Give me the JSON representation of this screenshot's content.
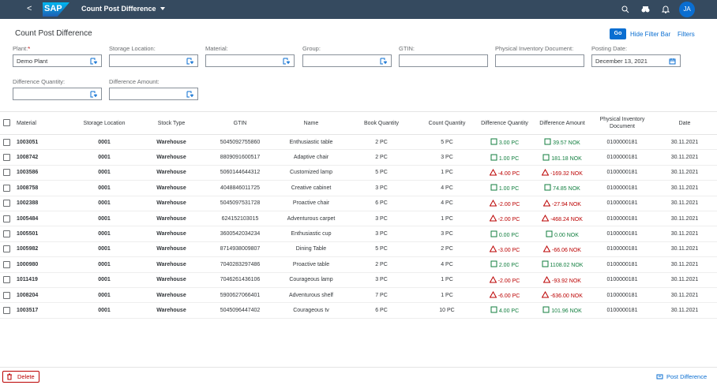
{
  "shell": {
    "back": "<",
    "logo": "SAP",
    "title": "Count Post Difference",
    "user": "JA"
  },
  "header": {
    "title": "Count Post Difference",
    "go": "Go",
    "hide_filter_bar": "Hide Filter Bar",
    "filters_link": "Filters"
  },
  "filters": [
    {
      "label": "Plant:",
      "required": "*",
      "value": "Demo Plant"
    },
    {
      "label": "Storage Location:"
    },
    {
      "label": "Material:"
    },
    {
      "label": "Group:"
    },
    {
      "label": "GTIN:"
    },
    {
      "label": "Physical Inventory Document:"
    },
    {
      "label": "Posting Date:",
      "value": "December 13, 2021"
    },
    {
      "label": "Difference Quantity:"
    },
    {
      "label": "Difference Amount:"
    }
  ],
  "table": {
    "columns": [
      "Material",
      "Storage Location",
      "Stock Type",
      "GTIN",
      "Name",
      "Book Quantity",
      "Count Quantity",
      "Difference Quantity",
      "Difference Amount",
      "Physical Inventory Document",
      "Date"
    ],
    "rows": [
      [
        "1003051",
        "0001",
        "Warehouse",
        "5045092755860",
        "Enthusiastic table",
        "2 PC",
        "5 PC",
        "3.00 PC",
        "39.57 NOK",
        "0100000181",
        "30.11.2021"
      ],
      [
        "1008742",
        "0001",
        "Warehouse",
        "8809091600517",
        "Adaptive chair",
        "2 PC",
        "3 PC",
        "1.00 PC",
        "181.18 NOK",
        "0100000181",
        "30.11.2021"
      ],
      [
        "1003586",
        "0001",
        "Warehouse",
        "5060144644312",
        "Customized lamp",
        "5 PC",
        "1 PC",
        "-4.00 PC",
        "-169.32 NOK",
        "0100000181",
        "30.11.2021"
      ],
      [
        "1008758",
        "0001",
        "Warehouse",
        "4048846011725",
        "Creative cabinet",
        "3 PC",
        "4 PC",
        "1.00 PC",
        "74.85 NOK",
        "0100000181",
        "30.11.2021"
      ],
      [
        "1002388",
        "0001",
        "Warehouse",
        "5045097531728",
        "Proactive chair",
        "6 PC",
        "4 PC",
        "-2.00 PC",
        "-27.94 NOK",
        "0100000181",
        "30.11.2021"
      ],
      [
        "1005484",
        "0001",
        "Warehouse",
        "624152103015",
        "Adventurous carpet",
        "3 PC",
        "1 PC",
        "-2.00 PC",
        "-468.24 NOK",
        "0100000181",
        "30.11.2021"
      ],
      [
        "1005501",
        "0001",
        "Warehouse",
        "3600542034234",
        "Enthusiastic cup",
        "3 PC",
        "3 PC",
        "0.00 PC",
        "0.00 NOK",
        "0100000181",
        "30.11.2021"
      ],
      [
        "1005982",
        "0001",
        "Warehouse",
        "8714938009807",
        "Dining Table",
        "5 PC",
        "2 PC",
        "-3.00 PC",
        "-66.06 NOK",
        "0100000181",
        "30.11.2021"
      ],
      [
        "1000980",
        "0001",
        "Warehouse",
        "7040283297486",
        "Proactive table",
        "2 PC",
        "4 PC",
        "2.00 PC",
        "1108.02 NOK",
        "0100000181",
        "30.11.2021"
      ],
      [
        "1011419",
        "0001",
        "Warehouse",
        "7046261436106",
        "Courageous lamp",
        "3 PC",
        "1 PC",
        "-2.00 PC",
        "-93.92 NOK",
        "0100000181",
        "30.11.2021"
      ],
      [
        "1008204",
        "0001",
        "Warehouse",
        "5900627066401",
        "Adventurous shelf",
        "7 PC",
        "1 PC",
        "-6.00 PC",
        "-636.00 NOK",
        "0100000181",
        "30.11.2021"
      ],
      [
        "1003517",
        "0001",
        "Warehouse",
        "5045096447402",
        "Courageous tv",
        "6 PC",
        "10 PC",
        "4.00 PC",
        "101.96 NOK",
        "0100000181",
        "30.11.2021"
      ]
    ]
  },
  "footer": {
    "delete": "Delete",
    "post": "Post Difference"
  }
}
